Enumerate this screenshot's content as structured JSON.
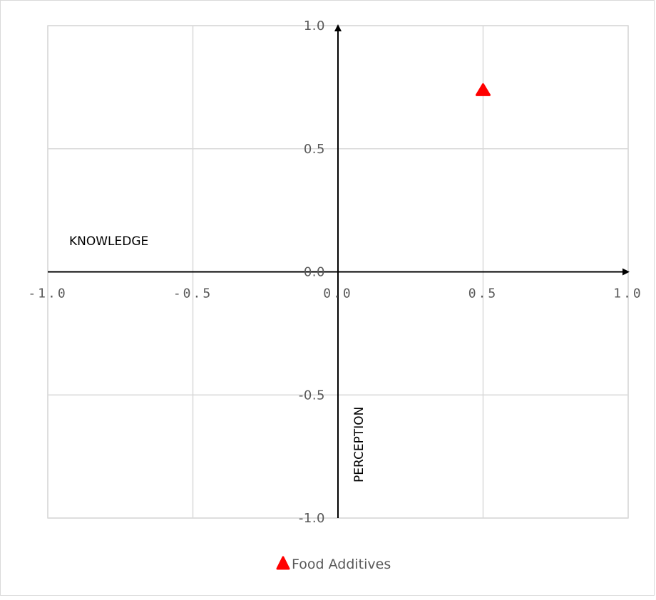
{
  "chart_data": {
    "type": "scatter",
    "title": "",
    "xlabel": "KNOWLEDGE",
    "ylabel": "PERCEPTION",
    "xlim": [
      -1.0,
      1.0
    ],
    "ylim": [
      -1.0,
      1.0
    ],
    "x_ticks": [
      "-1.0",
      "-0.5",
      "0.0",
      "0.5",
      "1.0"
    ],
    "y_ticks": [
      "-1.0",
      "-0.5",
      "0.0",
      "0.5",
      "1.0"
    ],
    "grid": true,
    "legend_position": "bottom",
    "series": [
      {
        "name": "Food Additives",
        "marker": "triangle",
        "color": "#ff0000",
        "points": [
          {
            "x": 0.5,
            "y": 0.74
          }
        ]
      }
    ]
  }
}
